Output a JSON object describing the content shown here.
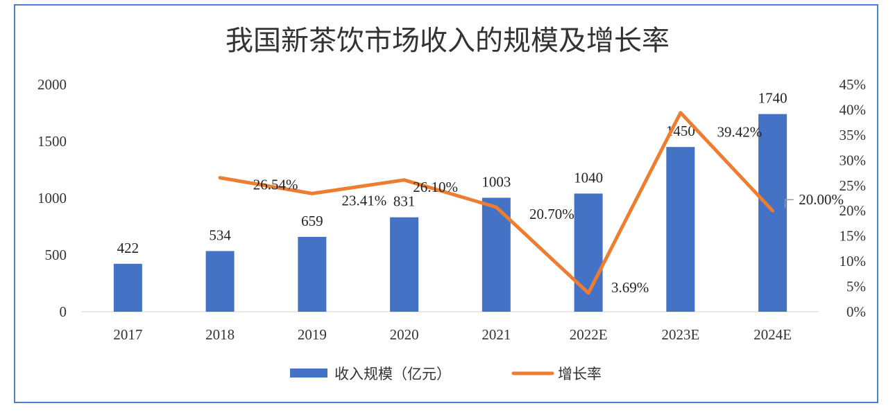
{
  "chart_data": {
    "type": "bar+line",
    "title": "我国新茶饮市场收入的规模及增长率",
    "categories": [
      "2017",
      "2018",
      "2019",
      "2020",
      "2021",
      "2022E",
      "2023E",
      "2024E"
    ],
    "series": [
      {
        "name": "收入规模（亿元）",
        "type": "bar",
        "axis": "left",
        "values": [
          422,
          534,
          659,
          831,
          1003,
          1040,
          1450,
          1740
        ],
        "labels": [
          "422",
          "534",
          "659",
          "831",
          "1003",
          "1040",
          "1450",
          "1740"
        ],
        "color": "#4472c4"
      },
      {
        "name": "增长率",
        "type": "line",
        "axis": "right",
        "values": [
          null,
          26.54,
          23.41,
          26.1,
          20.7,
          3.69,
          39.42,
          20.0
        ],
        "labels": [
          "",
          "26.54%",
          "23.41%",
          "26.10%",
          "20.70%",
          "3.69%",
          "39.42%",
          "20.00%"
        ],
        "color": "#ed7d31"
      }
    ],
    "y_left": {
      "range": [
        0,
        2000
      ],
      "ticks": [
        "0",
        "500",
        "1000",
        "1500",
        "2000"
      ]
    },
    "y_right": {
      "range": [
        0,
        45
      ],
      "ticks": [
        "0%",
        "5%",
        "10%",
        "15%",
        "20%",
        "25%",
        "30%",
        "35%",
        "40%",
        "45%"
      ]
    },
    "legend_position": "bottom",
    "grid": false
  }
}
